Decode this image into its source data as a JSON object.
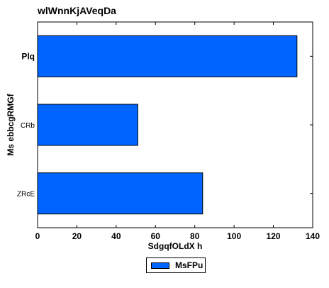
{
  "chart_data": {
    "type": "bar",
    "orientation": "horizontal",
    "title": "wlWnnKjAVeqDa",
    "xlabel": "SdgqfOLdX  h",
    "ylabel": "Ms ebbcgRMGf",
    "categories": [
      "Plq",
      "CRb",
      "ZRcE"
    ],
    "series": [
      {
        "name": "MsFPu",
        "values": [
          132,
          51,
          84
        ],
        "color": "#0064ff"
      }
    ],
    "xlim": [
      0,
      140
    ],
    "xticks": [
      "0",
      "20",
      "40",
      "60",
      "80",
      "100",
      "120",
      "140"
    ],
    "grid": false,
    "legend_position": "bottom-center"
  }
}
